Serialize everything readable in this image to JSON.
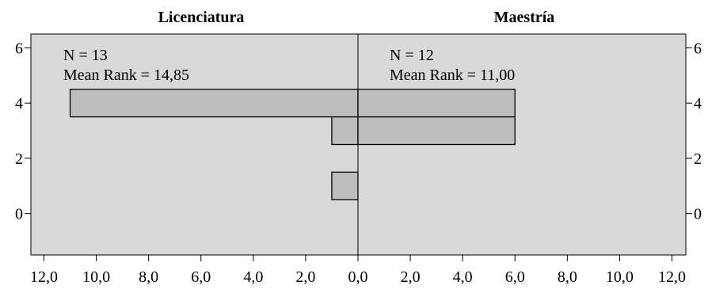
{
  "chart_data": {
    "type": "bar",
    "subtype": "back-to-back histogram",
    "groups": [
      {
        "side": "left",
        "title": "Licenciatura",
        "n_label": "N = 13",
        "mean_rank_label": "Mean Rank = 14,85",
        "bins": [
          {
            "y": 4,
            "count": 11
          },
          {
            "y": 3,
            "count": 1
          },
          {
            "y": 1,
            "count": 1
          }
        ]
      },
      {
        "side": "right",
        "title": "Maestría",
        "n_label": "N = 12",
        "mean_rank_label": "Mean Rank = 11,00",
        "bins": [
          {
            "y": 4,
            "count": 6
          },
          {
            "y": 3,
            "count": 6
          }
        ]
      }
    ],
    "x_ticks_left": [
      "12,0",
      "10,0",
      "8,0",
      "6,0",
      "4,0",
      "2,0"
    ],
    "x_ticks_right": [
      "0,0",
      "2,0",
      "4,0",
      "6,0",
      "8,0",
      "10,0",
      "12,0"
    ],
    "y_ticks": [
      "0",
      "2",
      "4",
      "6"
    ],
    "y_tick_values": [
      0,
      2,
      4,
      6
    ],
    "xlim": [
      0,
      12.5
    ],
    "ylim": [
      -1.5,
      6.5
    ],
    "bin_width": 1,
    "colors": {
      "plot_background": "#d9d9d9",
      "bar_fill": "#bdbdbd",
      "bar_stroke": "#000000"
    }
  }
}
